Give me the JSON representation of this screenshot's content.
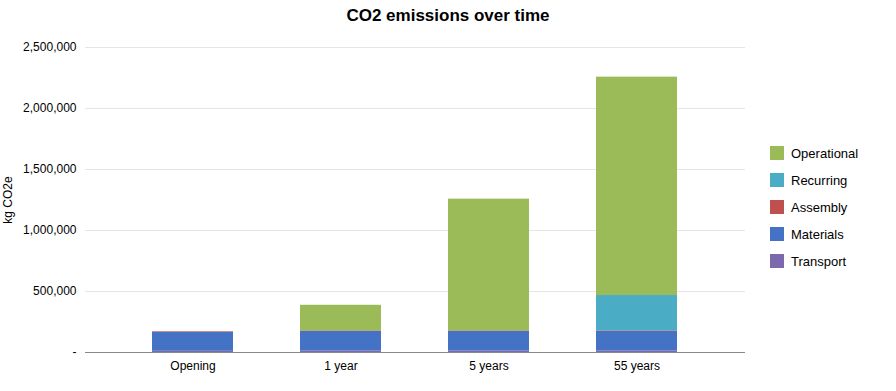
{
  "chart_data": {
    "type": "bar",
    "stacked": true,
    "title": "CO2 emissions over time",
    "ylabel": "kg CO2e",
    "categories": [
      "Opening",
      "1 year",
      "5 years",
      "55 years"
    ],
    "series": [
      {
        "name": "Transport",
        "color": "#7B68AE",
        "values": [
          10000,
          12000,
          12000,
          12000
        ]
      },
      {
        "name": "Materials",
        "color": "#4472C4",
        "values": [
          155000,
          160000,
          160000,
          160000
        ]
      },
      {
        "name": "Assembly",
        "color": "#C0504D",
        "values": [
          5000,
          5000,
          5000,
          5000
        ]
      },
      {
        "name": "Recurring",
        "color": "#4BACC6",
        "values": [
          0,
          0,
          0,
          290000
        ]
      },
      {
        "name": "Operational",
        "color": "#9BBB59",
        "values": [
          0,
          210000,
          1080000,
          1790000
        ]
      }
    ],
    "ylim": [
      0,
      2500000
    ],
    "yticks": [
      {
        "value": 0,
        "label": "-"
      },
      {
        "value": 500000,
        "label": "500,000"
      },
      {
        "value": 1000000,
        "label": "1,000,000"
      },
      {
        "value": 1500000,
        "label": "1,500,000"
      },
      {
        "value": 2000000,
        "label": "2,000,000"
      },
      {
        "value": 2500000,
        "label": "2,500,000"
      }
    ],
    "grid": true,
    "legend": "right"
  }
}
